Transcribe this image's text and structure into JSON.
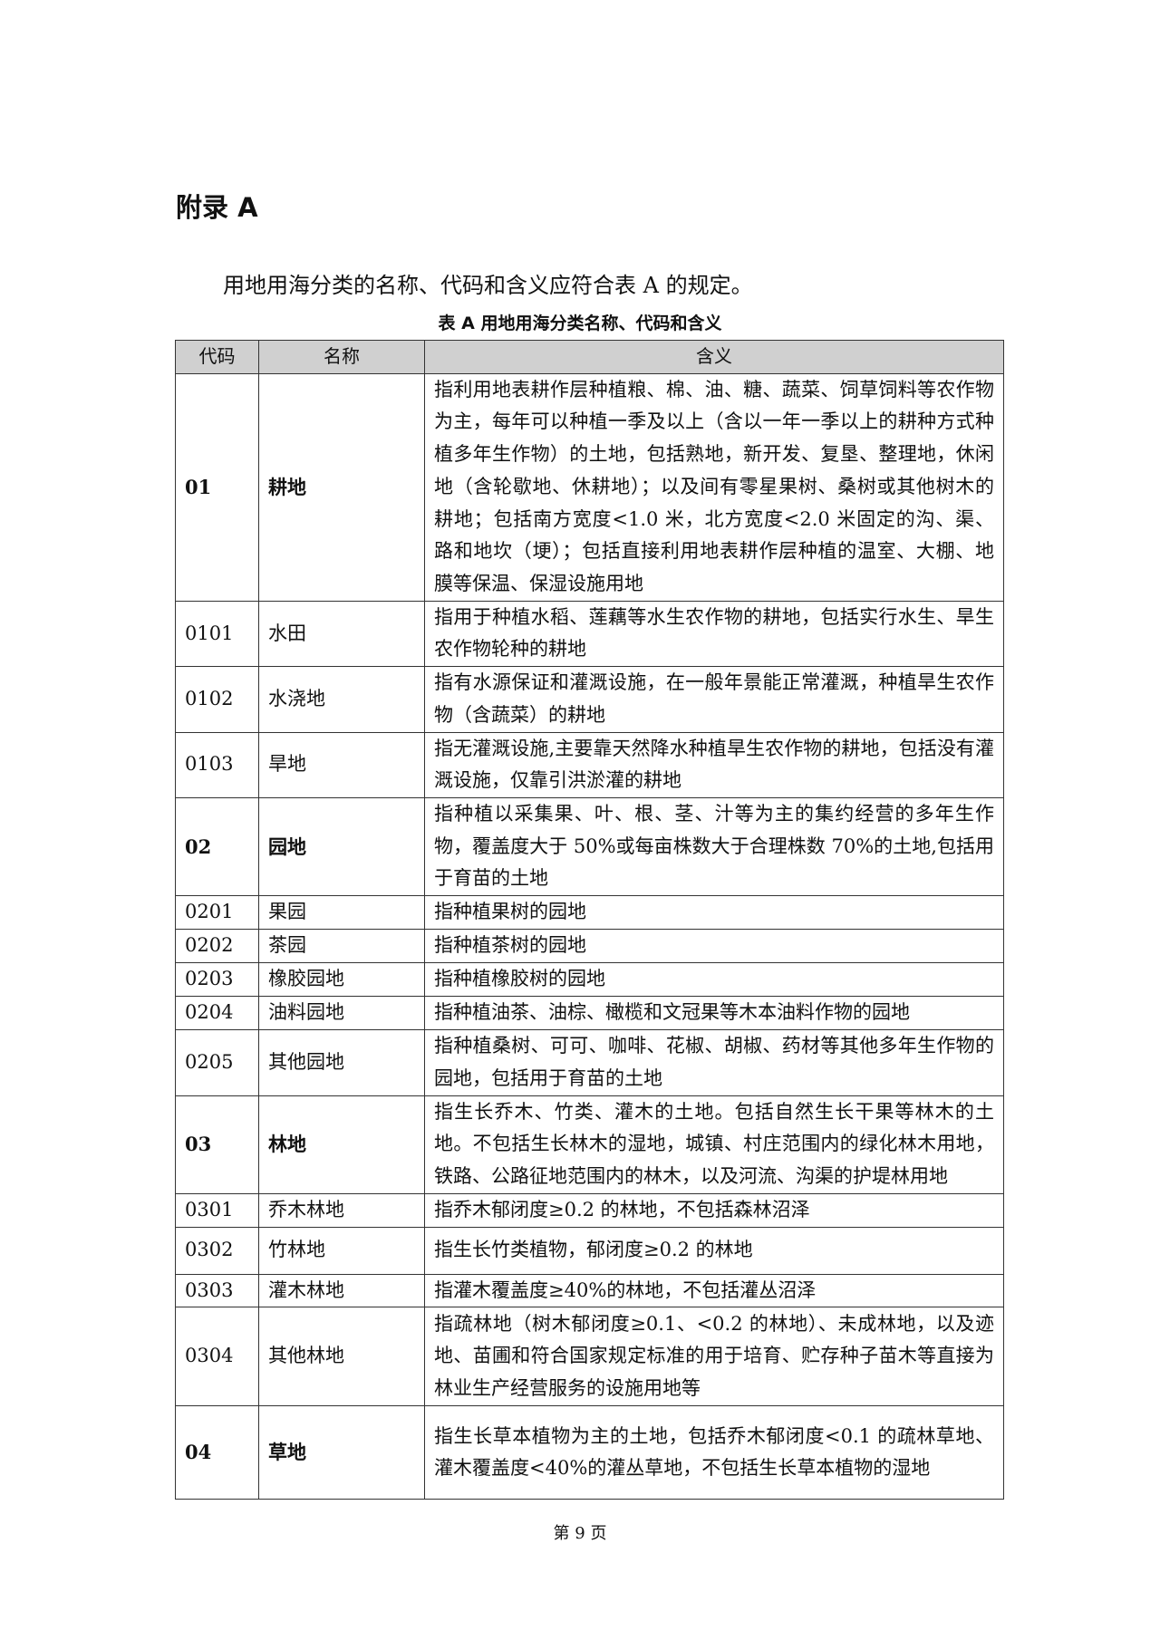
{
  "heading": "附录 A",
  "intro": "用地用海分类的名称、代码和含义应符合表 A 的规定。",
  "table": {
    "caption": "表 A 用地用海分类名称、代码和含义",
    "headers": [
      "代码",
      "名称",
      "含义"
    ],
    "rows": [
      {
        "code": "01",
        "name": "耕地",
        "major": true,
        "desc": "指利用地表耕作层种植粮、棉、油、糖、蔬菜、饲草饲料等农作物为主，每年可以种植一季及以上（含以一年一季以上的耕种方式种植多年生作物）的土地，包括熟地，新开发、复垦、整理地，休闲地（含轮歇地、休耕地）；以及间有零星果树、桑树或其他树木的耕地；包括南方宽度<1.0 米，北方宽度<2.0 米固定的沟、渠、路和地坎（埂）；包括直接利用地表耕作层种植的温室、大棚、地膜等保温、保湿设施用地"
      },
      {
        "code": "0101",
        "name": "水田",
        "major": false,
        "desc": "指用于种植水稻、莲藕等水生农作物的耕地，包括实行水生、旱生农作物轮种的耕地"
      },
      {
        "code": "0102",
        "name": "水浇地",
        "major": false,
        "desc": "指有水源保证和灌溉设施，在一般年景能正常灌溉，种植旱生农作物（含蔬菜）的耕地"
      },
      {
        "code": "0103",
        "name": "旱地",
        "major": false,
        "desc": "指无灌溉设施,主要靠天然降水种植旱生农作物的耕地，包括没有灌溉设施，仅靠引洪淤灌的耕地"
      },
      {
        "code": "02",
        "name": "园地",
        "major": true,
        "desc": "指种植以采集果、叶、根、茎、汁等为主的集约经营的多年生作物，覆盖度大于 50%或每亩株数大于合理株数 70%的土地,包括用于育苗的土地"
      },
      {
        "code": "0201",
        "name": "果园",
        "major": false,
        "desc": "指种植果树的园地"
      },
      {
        "code": "0202",
        "name": "茶园",
        "major": false,
        "desc": "指种植茶树的园地"
      },
      {
        "code": "0203",
        "name": "橡胶园地",
        "major": false,
        "desc": "指种植橡胶树的园地"
      },
      {
        "code": "0204",
        "name": "油料园地",
        "major": false,
        "desc": "指种植油茶、油棕、橄榄和文冠果等木本油料作物的园地"
      },
      {
        "code": "0205",
        "name": "其他园地",
        "major": false,
        "desc": "指种植桑树、可可、咖啡、花椒、胡椒、药材等其他多年生作物的园地，包括用于育苗的土地"
      },
      {
        "code": "03",
        "name": "林地",
        "major": true,
        "desc": "指生长乔木、竹类、灌木的土地。包括自然生长干果等林木的土地。不包括生长林木的湿地，城镇、村庄范围内的绿化林木用地，铁路、公路征地范围内的林木，以及河流、沟渠的护堤林用地"
      },
      {
        "code": "0301",
        "name": "乔木林地",
        "major": false,
        "desc": "指乔木郁闭度≥0.2 的林地，不包括森林沼泽"
      },
      {
        "code": "0302",
        "name": "竹林地",
        "major": false,
        "desc": "指生长竹类植物，郁闭度≥0.2 的林地"
      },
      {
        "code": "0303",
        "name": "灌木林地",
        "major": false,
        "desc": "指灌木覆盖度≥40%的林地，不包括灌丛沼泽"
      },
      {
        "code": "0304",
        "name": "其他林地",
        "major": false,
        "desc": "指疏林地（树木郁闭度≥0.1、<0.2 的林地）、未成林地，以及迹地、苗圃和符合国家规定标准的用于培育、贮存种子苗木等直接为林业生产经营服务的设施用地等"
      },
      {
        "code": "04",
        "name": "草地",
        "major": true,
        "desc": "指生长草本植物为主的土地，包括乔木郁闭度<0.1 的疏林草地、灌木覆盖度<40%的灌丛草地，不包括生长草本植物的湿地"
      }
    ]
  },
  "page_number": "第 9 页"
}
